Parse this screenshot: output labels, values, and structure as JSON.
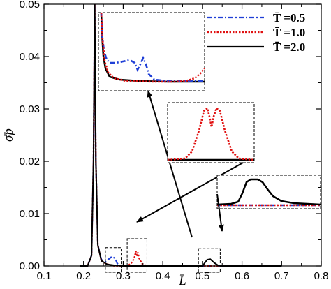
{
  "chart_data": {
    "type": "line",
    "xlabel": "L̄",
    "ylabel": "σ̄p",
    "xlim": [
      0.1,
      0.8
    ],
    "ylim": [
      0,
      0.05
    ],
    "x_ticks": [
      "0.1",
      "0.2",
      "0.3",
      "0.4",
      "0.5",
      "0.6",
      "0.7",
      "0.8"
    ],
    "y_ticks": [
      "0.00",
      "0.01",
      "0.02",
      "0.03",
      "0.04",
      "0.05"
    ],
    "x_tick_values": [
      0.1,
      0.2,
      0.3,
      0.4,
      0.5,
      0.6,
      0.7,
      0.8
    ],
    "y_tick_values": [
      0,
      0.01,
      0.02,
      0.03,
      0.04,
      0.05
    ],
    "grid": false,
    "legend_position": "top-right",
    "series": [
      {
        "name": "T̄ =0.5",
        "color": "#1f3fd6",
        "style": "dash-dot",
        "points": [
          [
            0.19,
            0
          ],
          [
            0.21,
            0
          ],
          [
            0.22,
            0.002
          ],
          [
            0.225,
            0.02
          ],
          [
            0.228,
            0.05
          ],
          [
            0.231,
            0.02
          ],
          [
            0.236,
            0.004
          ],
          [
            0.245,
            0.0012
          ],
          [
            0.255,
            0.0008
          ],
          [
            0.265,
            0.0014
          ],
          [
            0.272,
            0.0018
          ],
          [
            0.28,
            0.0014
          ],
          [
            0.285,
            0.0005
          ],
          [
            0.29,
            0.0001
          ],
          [
            0.3,
            0
          ],
          [
            0.4,
            0
          ],
          [
            0.5,
            0
          ],
          [
            0.6,
            0
          ],
          [
            0.7,
            0
          ]
        ]
      },
      {
        "name": "T̄ =1.0",
        "color": "#e01010",
        "style": "dotted",
        "points": [
          [
            0.19,
            0
          ],
          [
            0.21,
            0
          ],
          [
            0.22,
            0.002
          ],
          [
            0.225,
            0.02
          ],
          [
            0.228,
            0.05
          ],
          [
            0.231,
            0.02
          ],
          [
            0.236,
            0.004
          ],
          [
            0.245,
            0.001
          ],
          [
            0.255,
            0.0005
          ],
          [
            0.27,
            0.0001
          ],
          [
            0.28,
            0
          ],
          [
            0.31,
            0
          ],
          [
            0.32,
            0.0005
          ],
          [
            0.328,
            0.0015
          ],
          [
            0.332,
            0.0028
          ],
          [
            0.335,
            0.0018
          ],
          [
            0.337,
            0.0026
          ],
          [
            0.34,
            0.0015
          ],
          [
            0.348,
            0.0004
          ],
          [
            0.36,
            0
          ],
          [
            0.4,
            0
          ],
          [
            0.5,
            0
          ],
          [
            0.6,
            0
          ],
          [
            0.7,
            0
          ]
        ]
      },
      {
        "name": "T̄ =2.0",
        "color": "#000000",
        "style": "solid",
        "points": [
          [
            0.19,
            0
          ],
          [
            0.21,
            0
          ],
          [
            0.22,
            0.002
          ],
          [
            0.225,
            0.02
          ],
          [
            0.228,
            0.05
          ],
          [
            0.231,
            0.02
          ],
          [
            0.236,
            0.004
          ],
          [
            0.245,
            0.001
          ],
          [
            0.26,
            0.0003
          ],
          [
            0.28,
            0.0001
          ],
          [
            0.3,
            0
          ],
          [
            0.4,
            0
          ],
          [
            0.5,
            0
          ],
          [
            0.505,
            0.0005
          ],
          [
            0.512,
            0.0012
          ],
          [
            0.52,
            0.0013
          ],
          [
            0.53,
            0.0006
          ],
          [
            0.54,
            0.0001
          ],
          [
            0.55,
            0
          ],
          [
            0.6,
            0
          ],
          [
            0.7,
            0
          ]
        ]
      }
    ]
  }
}
